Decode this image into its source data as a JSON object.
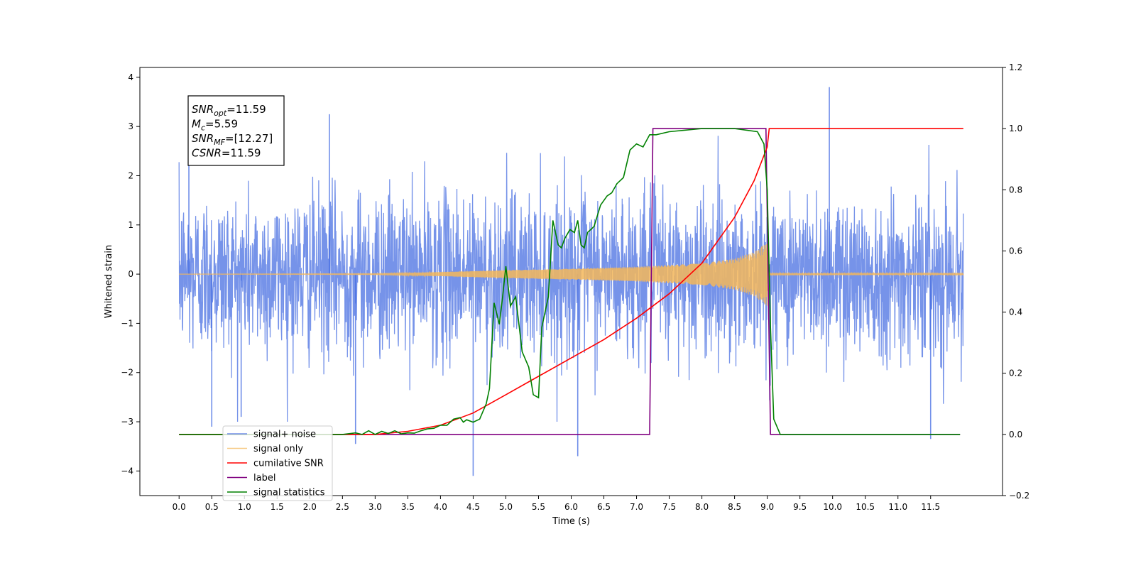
{
  "chart_data": {
    "type": "line",
    "xlabel": "Time (s)",
    "ylabel_left": "Whitened strain",
    "ylabel_right": "",
    "xlim": [
      -0.6,
      12.6
    ],
    "ylim_left": [
      -4.5,
      4.2
    ],
    "ylim_right": [
      -0.2,
      1.2
    ],
    "x_ticks": [
      0.0,
      0.5,
      1.0,
      1.5,
      2.0,
      2.5,
      3.0,
      3.5,
      4.0,
      4.5,
      5.0,
      5.5,
      6.0,
      6.5,
      7.0,
      7.5,
      8.0,
      8.5,
      9.0,
      9.5,
      10.0,
      10.5,
      11.0,
      11.5
    ],
    "x_tick_labels": [
      "0.0",
      "0.5",
      "1.0",
      "1.5",
      "2.0",
      "2.5",
      "3.0",
      "3.5",
      "4.0",
      "4.5",
      "5.0",
      "5.5",
      "6.0",
      "6.5",
      "7.0",
      "7.5",
      "8.0",
      "8.5",
      "9.0",
      "9.5",
      "10.0",
      "10.5",
      "11.0",
      "11.5"
    ],
    "y_left_ticks": [
      -4,
      -3,
      -2,
      -1,
      0,
      1,
      2,
      3,
      4
    ],
    "y_left_tick_labels": [
      "−4",
      "−3",
      "−2",
      "−1",
      "0",
      "1",
      "2",
      "3",
      "4"
    ],
    "y_right_ticks": [
      -0.2,
      0.0,
      0.2,
      0.4,
      0.6,
      0.8,
      1.0,
      1.2
    ],
    "y_right_tick_labels": [
      "−0.2",
      "0.0",
      "0.2",
      "0.4",
      "0.6",
      "0.8",
      "1.0",
      "1.2"
    ],
    "grid": false,
    "legend_position": "bottom-left",
    "annotation": {
      "lines": [
        {
          "base": "SNR",
          "sub": "opt",
          "rest": "=11.59"
        },
        {
          "base": "M",
          "sub": "c",
          "rest": "=5.59"
        },
        {
          "base": "SNR",
          "sub": "MF",
          "rest": "=[12.27]"
        },
        {
          "base": "CSNR",
          "sub": "",
          "rest": "=11.59"
        }
      ]
    },
    "series": [
      {
        "name": "signal+ noise",
        "axis": "left",
        "color": "#4169e1",
        "description": "dense whitened noise time series, roughly within ±2 with spikes to about ±3.8, spanning 0 to 12 s",
        "x_range": [
          0.0,
          12.0
        ],
        "envelope_typical": 2.2,
        "extremes": [
          {
            "x": 0.15,
            "y": 2.9
          },
          {
            "x": 0.5,
            "y": -3.1
          },
          {
            "x": 0.95,
            "y": -2.9
          },
          {
            "x": 2.3,
            "y": 3.25
          },
          {
            "x": 2.7,
            "y": -3.45
          },
          {
            "x": 4.5,
            "y": -4.1
          },
          {
            "x": 6.1,
            "y": -3.7
          },
          {
            "x": 9.95,
            "y": 3.8
          },
          {
            "x": 11.5,
            "y": -3.35
          }
        ]
      },
      {
        "name": "signal only",
        "axis": "left",
        "color": "#f4b75a",
        "description": "chirp with amplitude growing until merger near 9.0 s",
        "x_range": [
          0.0,
          12.0
        ],
        "amplitude_profile": {
          "x": [
            0.0,
            3.0,
            4.0,
            5.0,
            6.0,
            7.0,
            8.0,
            8.5,
            8.8,
            9.0,
            9.02,
            12.0
          ],
          "y": [
            0.0,
            0.01,
            0.04,
            0.08,
            0.11,
            0.15,
            0.22,
            0.32,
            0.45,
            0.65,
            0.02,
            0.01
          ]
        }
      },
      {
        "name": "cumilative SNR",
        "axis": "right",
        "color": "#ff0000",
        "x": [
          0.0,
          3.0,
          3.5,
          4.0,
          4.5,
          5.0,
          5.5,
          6.0,
          6.5,
          7.0,
          7.5,
          8.0,
          8.5,
          8.8,
          9.0,
          9.03,
          12.0
        ],
        "y": [
          0.0,
          0.0,
          0.01,
          0.03,
          0.07,
          0.13,
          0.19,
          0.25,
          0.31,
          0.38,
          0.46,
          0.56,
          0.71,
          0.83,
          0.94,
          1.0,
          1.0
        ]
      },
      {
        "name": "label",
        "axis": "right",
        "color": "#800080",
        "x": [
          0.0,
          7.2,
          7.25,
          8.98,
          9.05,
          11.95
        ],
        "y": [
          0.0,
          0.0,
          1.0,
          1.0,
          0.0,
          0.0
        ]
      },
      {
        "name": "signal statistics",
        "axis": "right",
        "color": "#008000",
        "x": [
          0.0,
          2.5,
          2.7,
          2.8,
          2.9,
          3.0,
          3.1,
          3.2,
          3.3,
          3.4,
          3.5,
          3.6,
          3.7,
          3.8,
          3.9,
          4.0,
          4.1,
          4.2,
          4.3,
          4.35,
          4.4,
          4.5,
          4.6,
          4.7,
          4.75,
          4.82,
          4.9,
          4.95,
          5.0,
          5.07,
          5.15,
          5.25,
          5.35,
          5.42,
          5.5,
          5.55,
          5.65,
          5.72,
          5.8,
          5.85,
          5.9,
          5.98,
          6.05,
          6.1,
          6.15,
          6.2,
          6.25,
          6.35,
          6.45,
          6.55,
          6.62,
          6.7,
          6.8,
          6.9,
          7.0,
          7.1,
          7.2,
          7.3,
          7.5,
          8.0,
          8.5,
          8.85,
          8.95,
          9.0,
          9.05,
          9.1,
          9.2,
          11.95
        ],
        "y": [
          0.0,
          0.0,
          0.005,
          0.0,
          0.012,
          0.0,
          0.01,
          0.003,
          0.012,
          0.002,
          0.005,
          0.004,
          0.012,
          0.018,
          0.02,
          0.03,
          0.03,
          0.05,
          0.055,
          0.04,
          0.048,
          0.04,
          0.05,
          0.1,
          0.15,
          0.43,
          0.36,
          0.45,
          0.55,
          0.42,
          0.45,
          0.27,
          0.22,
          0.13,
          0.12,
          0.35,
          0.45,
          0.7,
          0.62,
          0.61,
          0.64,
          0.67,
          0.66,
          0.7,
          0.62,
          0.61,
          0.66,
          0.68,
          0.75,
          0.78,
          0.79,
          0.82,
          0.84,
          0.93,
          0.95,
          0.94,
          0.98,
          0.98,
          0.99,
          1.0,
          1.0,
          0.99,
          0.95,
          0.8,
          0.35,
          0.05,
          0.0,
          0.0
        ]
      }
    ]
  }
}
